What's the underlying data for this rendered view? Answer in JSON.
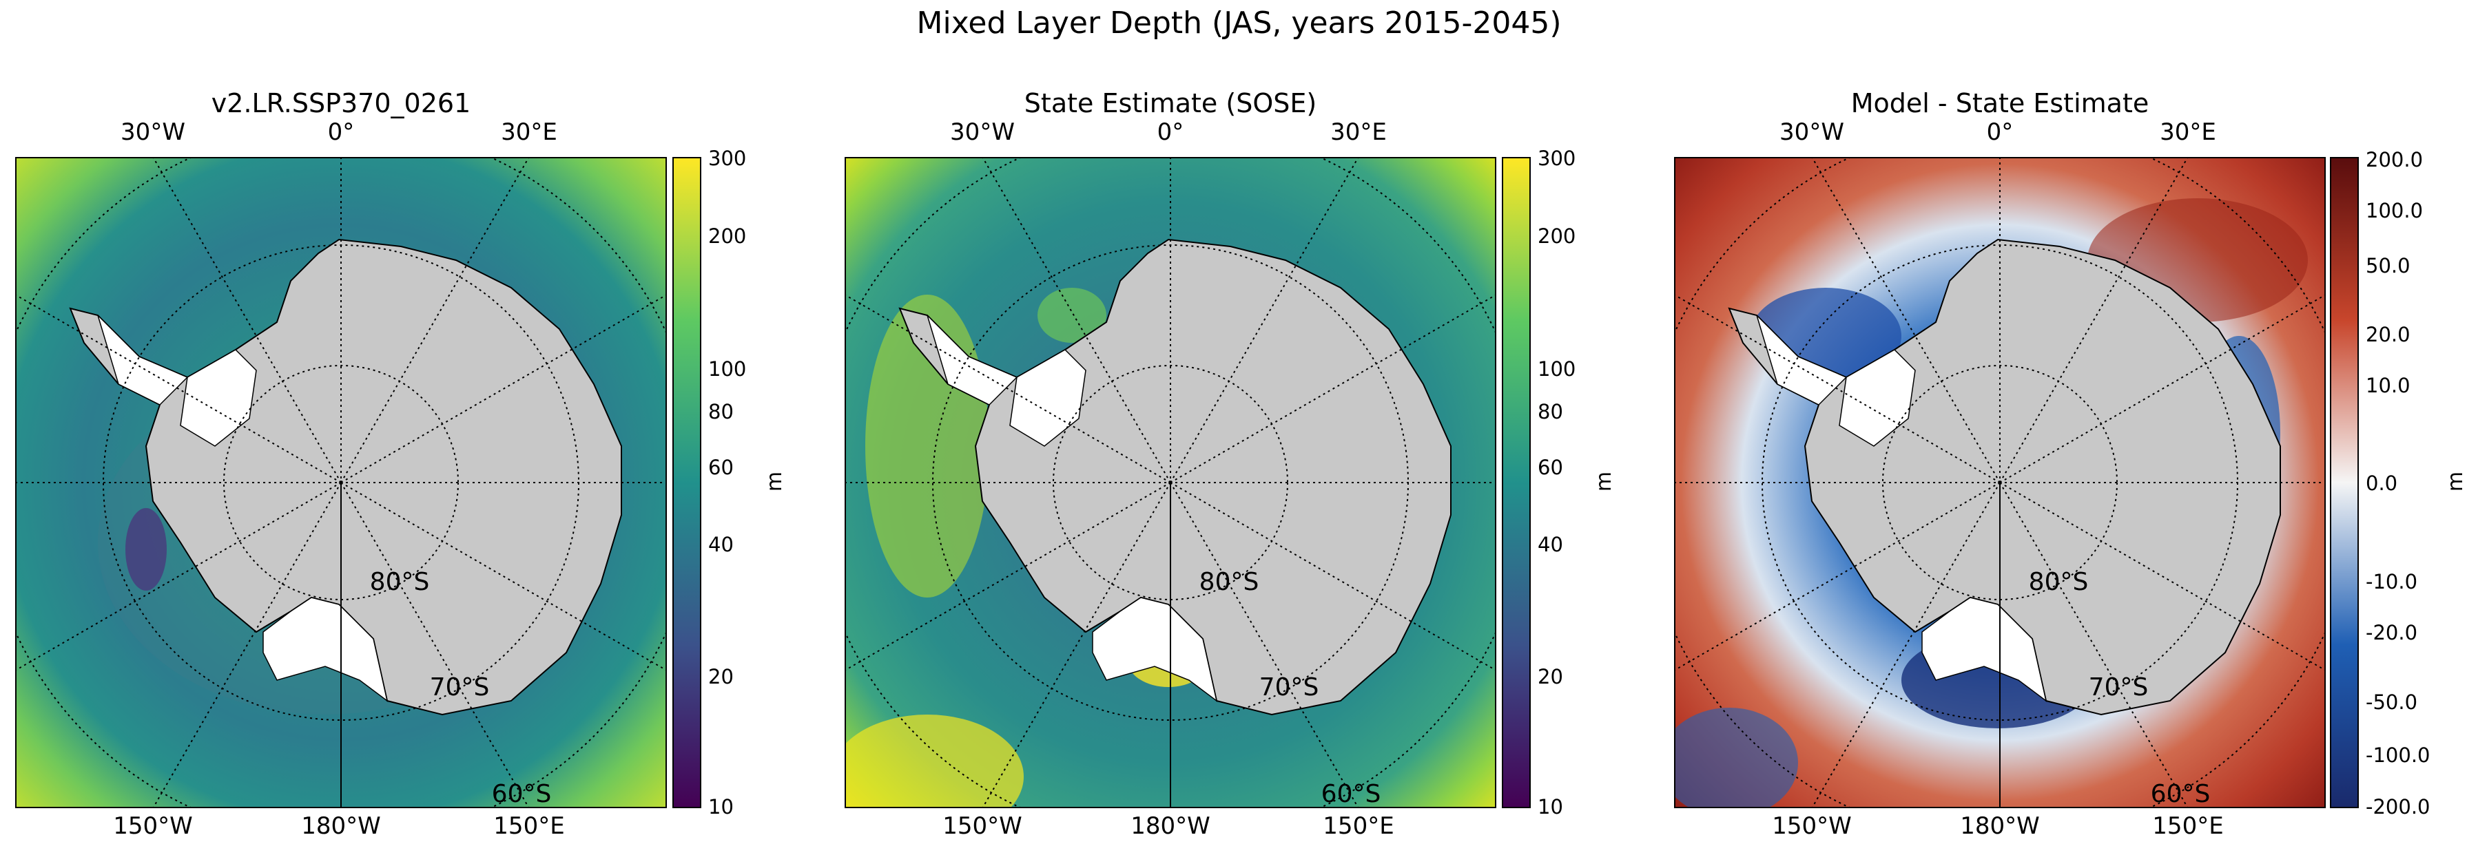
{
  "figure": {
    "title": "Mixed Layer Depth (JAS, years 2015-2045)"
  },
  "panels": [
    {
      "title": "v2.LR.SSP370_0261",
      "colorbar": "viridis_log"
    },
    {
      "title": "State Estimate (SOSE)",
      "colorbar": "viridis_log"
    },
    {
      "title": "Model - State Estimate",
      "colorbar": "diverging_symlog"
    }
  ],
  "map_labels": {
    "top": [
      "30°W",
      "0°",
      "30°E"
    ],
    "bottom": [
      "150°W",
      "180°W",
      "150°E"
    ],
    "lat_80": "80°S",
    "lat_70": "70°S",
    "lat_60": "60°S"
  },
  "colorbars": {
    "depth": {
      "unit": "m",
      "ticks": [
        "300",
        "200",
        "100",
        "80",
        "60",
        "40",
        "20",
        "10"
      ]
    },
    "diff": {
      "unit": "m",
      "ticks": [
        "200.0",
        "100.0",
        "50.0",
        "20.0",
        "10.0",
        "0.0",
        "-10.0",
        "-20.0",
        "-50.0",
        "-100.0",
        "-200.0"
      ]
    }
  },
  "colors": {
    "land": "#c8c8c8",
    "ice_shelf": "#ffffff",
    "viridis": [
      "#440154",
      "#3b528b",
      "#21918c",
      "#5ec962",
      "#fde725"
    ],
    "diverging": [
      "#1a2a6c",
      "#1f5fb4",
      "#f5f5f5",
      "#c8462c",
      "#5a0d0d"
    ]
  }
}
